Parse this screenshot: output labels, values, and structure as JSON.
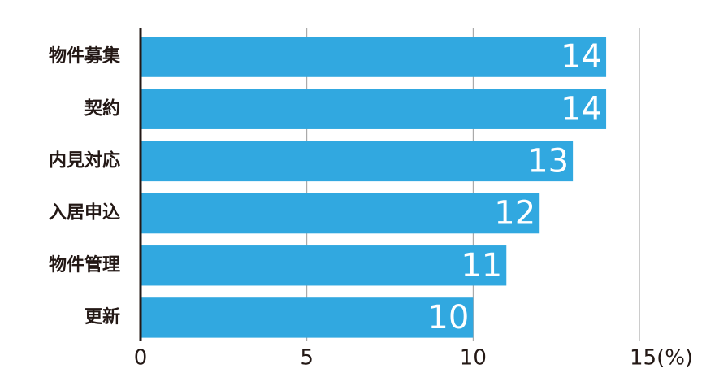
{
  "chart_data": {
    "type": "bar",
    "orientation": "horizontal",
    "categories": [
      "物件募集",
      "契約",
      "内見対応",
      "入居申込",
      "物件管理",
      "更新"
    ],
    "values": [
      14,
      14,
      13,
      12,
      11,
      10
    ],
    "color": "#31a8e0",
    "xlim": [
      0,
      15
    ],
    "xticks": [
      0,
      5,
      10,
      {
        "value": 15,
        "label": "15(%)"
      }
    ],
    "grid": true
  }
}
